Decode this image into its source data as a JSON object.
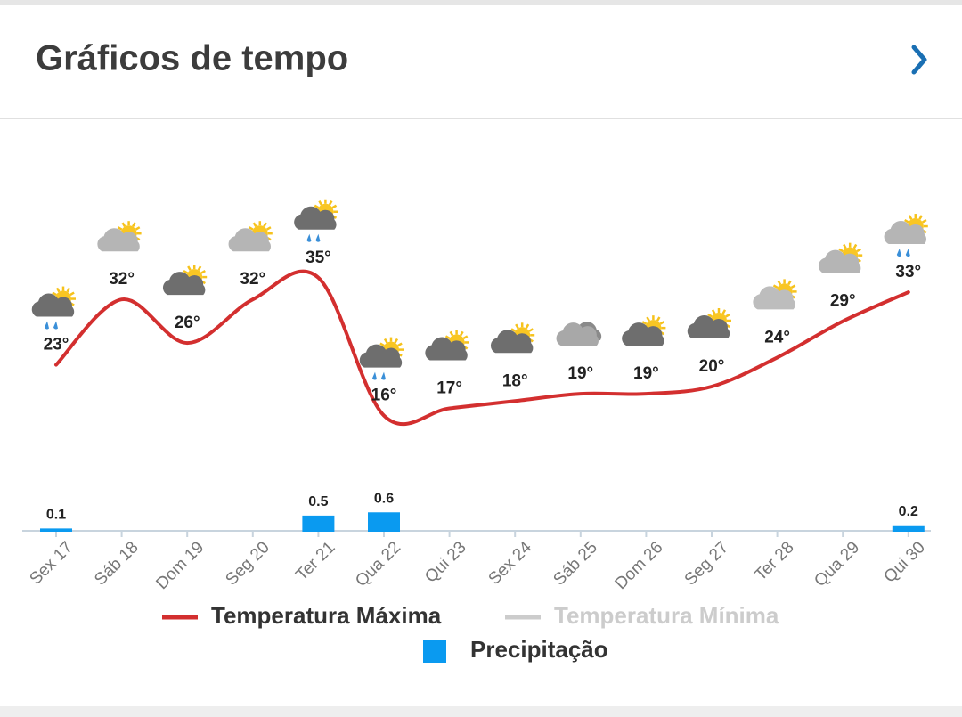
{
  "header": {
    "title": "Gráficos de tempo"
  },
  "chart_data": {
    "type": "line",
    "categories": [
      "Sex 17",
      "Sáb 18",
      "Dom 19",
      "Seg 20",
      "Ter 21",
      "Qua 22",
      "Qui 23",
      "Sex 24",
      "Sáb 25",
      "Dom 26",
      "Seg 27",
      "Ter 28",
      "Qua 29",
      "Qui 30"
    ],
    "ylim": [
      0,
      40
    ],
    "y2lim": [
      0,
      9
    ],
    "series": [
      {
        "name": "Temperatura Máxima",
        "color": "#d32f2f",
        "values": [
          23,
          32,
          26,
          32,
          35,
          16,
          17,
          18,
          19,
          19,
          20,
          24,
          29,
          33
        ],
        "value_labels": [
          "23°",
          "32°",
          "26°",
          "32°",
          "35°",
          "16°",
          "17°",
          "18°",
          "19°",
          "19°",
          "20°",
          "24°",
          "29°",
          "33°"
        ]
      },
      {
        "name": "Temperatura Mínima",
        "color": "#cccccc",
        "hidden": true,
        "values": [
          null,
          null,
          null,
          null,
          null,
          null,
          null,
          null,
          null,
          null,
          null,
          null,
          null,
          null
        ]
      },
      {
        "name": "Precipitação",
        "color": "#0a9af0",
        "type": "bar",
        "axis": "y2",
        "values": [
          0.1,
          null,
          null,
          null,
          0.5,
          0.6,
          null,
          null,
          null,
          null,
          null,
          null,
          null,
          0.2
        ]
      }
    ]
  }
}
